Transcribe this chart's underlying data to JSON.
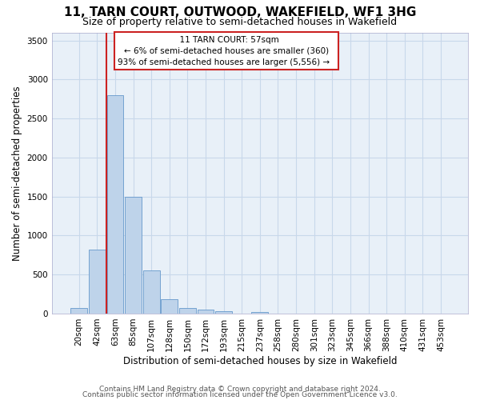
{
  "title": "11, TARN COURT, OUTWOOD, WAKEFIELD, WF1 3HG",
  "subtitle": "Size of property relative to semi-detached houses in Wakefield",
  "xlabel": "Distribution of semi-detached houses by size in Wakefield",
  "ylabel": "Number of semi-detached properties",
  "footer1": "Contains HM Land Registry data © Crown copyright and database right 2024.",
  "footer2": "Contains public sector information licensed under the Open Government Licence v3.0.",
  "annotation_line1": "11 TARN COURT: 57sqm",
  "annotation_line2": "← 6% of semi-detached houses are smaller (360)",
  "annotation_line3": "93% of semi-detached houses are larger (5,556) →",
  "bar_labels": [
    "20sqm",
    "42sqm",
    "63sqm",
    "85sqm",
    "107sqm",
    "128sqm",
    "150sqm",
    "172sqm",
    "193sqm",
    "215sqm",
    "237sqm",
    "258sqm",
    "280sqm",
    "301sqm",
    "323sqm",
    "345sqm",
    "366sqm",
    "388sqm",
    "410sqm",
    "431sqm",
    "453sqm"
  ],
  "bar_heights": [
    75,
    820,
    2800,
    1500,
    550,
    185,
    75,
    50,
    35,
    0,
    25,
    0,
    0,
    0,
    0,
    0,
    0,
    0,
    0,
    0,
    0
  ],
  "bar_color": "#bed3ea",
  "bar_edge_color": "#6699cc",
  "vline_color": "#cc2222",
  "vline_pos": 1.5,
  "ylim": [
    0,
    3600
  ],
  "yticks": [
    0,
    500,
    1000,
    1500,
    2000,
    2500,
    3000,
    3500
  ],
  "grid_color": "#c8d8ea",
  "bg_color": "#e8f0f8",
  "annotation_box_color": "#cc2222",
  "title_fontsize": 11,
  "subtitle_fontsize": 9,
  "axis_label_fontsize": 8.5,
  "tick_fontsize": 7.5,
  "footer_fontsize": 6.5
}
